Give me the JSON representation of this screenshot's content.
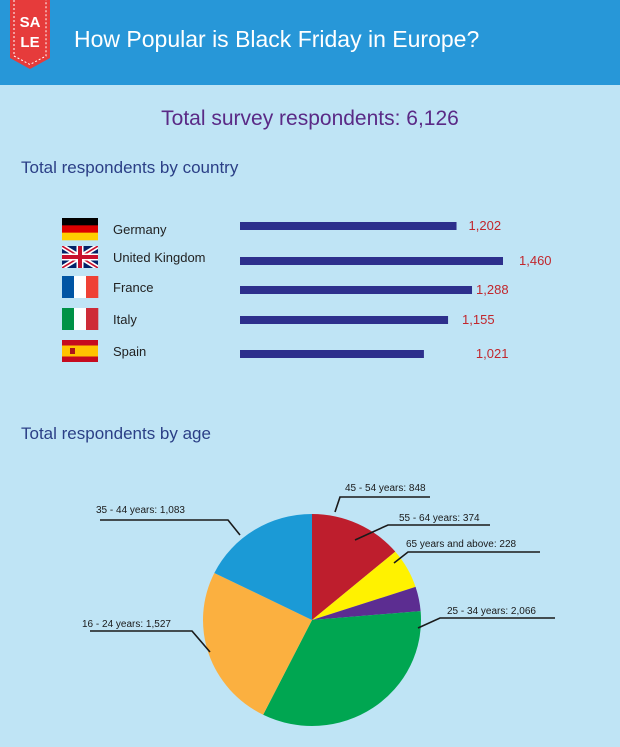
{
  "header": {
    "tag_line1": "SA",
    "tag_line2": "LE",
    "title": "How Popular is Black Friday in Europe?"
  },
  "total_line": "Total survey respondents: 6,126",
  "colors": {
    "header_bg": "#2797d8",
    "page_bg": "#bfe4f5",
    "tag_red": "#e63b3b",
    "bar": "#2d2f8c",
    "value_text": "#c1272d",
    "total_text": "#5a2a86",
    "section_text": "#2b3f86"
  },
  "chart_data": [
    {
      "type": "bar",
      "orientation": "horizontal",
      "title": "Total respondents by country",
      "categories": [
        "Germany",
        "United Kingdom",
        "France",
        "Italy",
        "Spain"
      ],
      "values": [
        1202,
        1460,
        1288,
        1155,
        1021
      ],
      "value_labels": [
        "1,202",
        "1,460",
        "1,288",
        "1,155",
        "1,021"
      ],
      "flag_icons": [
        "flag-germany-icon",
        "flag-uk-icon",
        "flag-france-icon",
        "flag-italy-icon",
        "flag-spain-icon"
      ]
    },
    {
      "type": "pie",
      "title": "Total respondents by age",
      "slices": [
        {
          "label": "45 - 54 years: 848",
          "value": 848,
          "color": "#be1e2d"
        },
        {
          "label": "55 - 64 years: 374",
          "value": 374,
          "color": "#fff200"
        },
        {
          "label": "65 years and above: 228",
          "value": 228,
          "color": "#5c2d91"
        },
        {
          "label": "25 - 34 years: 2,066",
          "value": 2066,
          "color": "#00a651"
        },
        {
          "label": "16 - 24 years: 1,527",
          "value": 1527,
          "color": "#fbb040"
        },
        {
          "label": "35 - 44 years: 1,083",
          "value": 1083,
          "color": "#1b9ad6"
        }
      ]
    }
  ]
}
